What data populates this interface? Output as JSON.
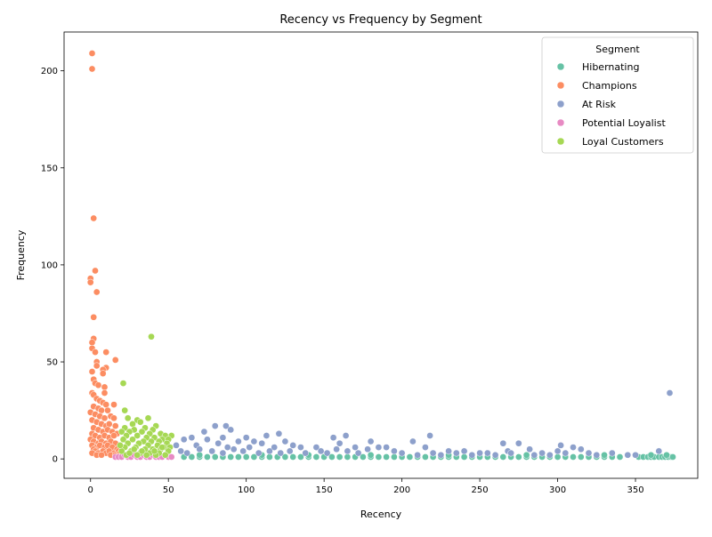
{
  "chart_data": {
    "type": "scatter",
    "title": "Recency vs Frequency by Segment",
    "xlabel": "Recency",
    "ylabel": "Frequency",
    "xlim": [
      -17,
      390
    ],
    "ylim": [
      -10,
      220
    ],
    "xticks": [
      0,
      50,
      100,
      150,
      200,
      250,
      300,
      350
    ],
    "yticks": [
      0,
      50,
      100,
      150,
      200
    ],
    "grid": false,
    "legend": {
      "title": "Segment",
      "placement": "top-right"
    },
    "series": [
      {
        "name": "Hibernating",
        "color": "#66c2a5",
        "points": [
          [
            60,
            1
          ],
          [
            65,
            1
          ],
          [
            70,
            1
          ],
          [
            75,
            1
          ],
          [
            80,
            1
          ],
          [
            85,
            1
          ],
          [
            90,
            1
          ],
          [
            95,
            1
          ],
          [
            100,
            1
          ],
          [
            105,
            1
          ],
          [
            110,
            1
          ],
          [
            115,
            1
          ],
          [
            120,
            1
          ],
          [
            125,
            1
          ],
          [
            130,
            1
          ],
          [
            135,
            1
          ],
          [
            140,
            1
          ],
          [
            145,
            1
          ],
          [
            150,
            1
          ],
          [
            155,
            1
          ],
          [
            160,
            1
          ],
          [
            165,
            1
          ],
          [
            170,
            1
          ],
          [
            175,
            1
          ],
          [
            180,
            1
          ],
          [
            185,
            1
          ],
          [
            190,
            1
          ],
          [
            195,
            1
          ],
          [
            200,
            1
          ],
          [
            205,
            1
          ],
          [
            210,
            1
          ],
          [
            215,
            1
          ],
          [
            220,
            1
          ],
          [
            225,
            1
          ],
          [
            230,
            1
          ],
          [
            235,
            1
          ],
          [
            240,
            1
          ],
          [
            245,
            1
          ],
          [
            250,
            1
          ],
          [
            255,
            1
          ],
          [
            260,
            1
          ],
          [
            265,
            1
          ],
          [
            270,
            1
          ],
          [
            275,
            1
          ],
          [
            280,
            1
          ],
          [
            285,
            1
          ],
          [
            290,
            1
          ],
          [
            295,
            1
          ],
          [
            300,
            1
          ],
          [
            305,
            1
          ],
          [
            310,
            1
          ],
          [
            315,
            1
          ],
          [
            320,
            1
          ],
          [
            325,
            1
          ],
          [
            330,
            1
          ],
          [
            335,
            1
          ],
          [
            340,
            1
          ],
          [
            352,
            1
          ],
          [
            355,
            1
          ],
          [
            358,
            1
          ],
          [
            360,
            1
          ],
          [
            362,
            1
          ],
          [
            365,
            1
          ],
          [
            367,
            1
          ],
          [
            369,
            1
          ],
          [
            371,
            1
          ],
          [
            373,
            1
          ],
          [
            374,
            1
          ],
          [
            70,
            2
          ],
          [
            110,
            2
          ],
          [
            140,
            2
          ],
          [
            180,
            2
          ],
          [
            230,
            2
          ],
          [
            280,
            2
          ],
          [
            330,
            2
          ],
          [
            360,
            2
          ],
          [
            370,
            2
          ]
        ]
      },
      {
        "name": "Champions",
        "color": "#fc8d62",
        "points": [
          [
            1,
            209
          ],
          [
            1,
            201
          ],
          [
            2,
            124
          ],
          [
            3,
            97
          ],
          [
            4,
            86
          ],
          [
            0,
            93
          ],
          [
            0,
            91
          ],
          [
            2,
            73
          ],
          [
            2,
            62
          ],
          [
            1,
            60
          ],
          [
            1,
            57
          ],
          [
            3,
            55
          ],
          [
            4,
            50
          ],
          [
            4,
            48
          ],
          [
            10,
            55
          ],
          [
            10,
            47
          ],
          [
            16,
            51
          ],
          [
            8,
            46
          ],
          [
            8,
            44
          ],
          [
            1,
            45
          ],
          [
            2,
            41
          ],
          [
            3,
            39
          ],
          [
            5,
            38
          ],
          [
            9,
            37
          ],
          [
            9,
            34
          ],
          [
            1,
            34
          ],
          [
            2,
            33
          ],
          [
            4,
            31
          ],
          [
            6,
            30
          ],
          [
            8,
            29
          ],
          [
            10,
            28
          ],
          [
            15,
            28
          ],
          [
            2,
            27
          ],
          [
            5,
            26
          ],
          [
            7,
            25
          ],
          [
            11,
            25
          ],
          [
            0,
            24
          ],
          [
            3,
            23
          ],
          [
            6,
            22
          ],
          [
            9,
            21
          ],
          [
            13,
            22
          ],
          [
            15,
            21
          ],
          [
            1,
            20
          ],
          [
            4,
            19
          ],
          [
            7,
            18
          ],
          [
            10,
            17
          ],
          [
            12,
            18
          ],
          [
            16,
            17
          ],
          [
            2,
            16
          ],
          [
            5,
            15
          ],
          [
            8,
            14
          ],
          [
            11,
            15
          ],
          [
            14,
            14
          ],
          [
            17,
            13
          ],
          [
            1,
            13
          ],
          [
            3,
            12
          ],
          [
            6,
            11
          ],
          [
            9,
            12
          ],
          [
            12,
            11
          ],
          [
            15,
            12
          ],
          [
            0,
            10
          ],
          [
            2,
            9
          ],
          [
            5,
            8
          ],
          [
            7,
            9
          ],
          [
            10,
            8
          ],
          [
            13,
            9
          ],
          [
            16,
            8
          ],
          [
            1,
            7
          ],
          [
            4,
            6
          ],
          [
            6,
            7
          ],
          [
            9,
            6
          ],
          [
            11,
            7
          ],
          [
            14,
            6
          ],
          [
            17,
            5
          ],
          [
            2,
            5
          ],
          [
            3,
            4
          ],
          [
            5,
            3
          ],
          [
            8,
            4
          ],
          [
            10,
            3
          ],
          [
            12,
            4
          ],
          [
            15,
            3
          ],
          [
            18,
            4
          ],
          [
            1,
            3
          ],
          [
            4,
            2
          ],
          [
            7,
            2
          ],
          [
            13,
            2
          ],
          [
            16,
            2
          ],
          [
            19,
            3
          ]
        ]
      },
      {
        "name": "At Risk",
        "color": "#8da0cb",
        "points": [
          [
            372,
            34
          ],
          [
            80,
            17
          ],
          [
            87,
            17
          ],
          [
            90,
            15
          ],
          [
            73,
            14
          ],
          [
            121,
            13
          ],
          [
            113,
            12
          ],
          [
            164,
            12
          ],
          [
            218,
            12
          ],
          [
            85,
            11
          ],
          [
            100,
            11
          ],
          [
            156,
            11
          ],
          [
            65,
            11
          ],
          [
            60,
            10
          ],
          [
            75,
            10
          ],
          [
            95,
            9
          ],
          [
            105,
            9
          ],
          [
            125,
            9
          ],
          [
            180,
            9
          ],
          [
            207,
            9
          ],
          [
            82,
            8
          ],
          [
            110,
            8
          ],
          [
            130,
            7
          ],
          [
            160,
            8
          ],
          [
            190,
            6
          ],
          [
            265,
            8
          ],
          [
            275,
            8
          ],
          [
            302,
            7
          ],
          [
            55,
            7
          ],
          [
            68,
            7
          ],
          [
            88,
            6
          ],
          [
            102,
            6
          ],
          [
            118,
            6
          ],
          [
            135,
            6
          ],
          [
            145,
            6
          ],
          [
            170,
            6
          ],
          [
            185,
            6
          ],
          [
            215,
            6
          ],
          [
            230,
            4
          ],
          [
            240,
            4
          ],
          [
            255,
            3
          ],
          [
            268,
            4
          ],
          [
            282,
            5
          ],
          [
            290,
            3
          ],
          [
            300,
            4
          ],
          [
            310,
            6
          ],
          [
            315,
            5
          ],
          [
            320,
            3
          ],
          [
            335,
            3
          ],
          [
            365,
            4
          ],
          [
            58,
            4
          ],
          [
            62,
            3
          ],
          [
            70,
            5
          ],
          [
            78,
            4
          ],
          [
            85,
            3
          ],
          [
            92,
            5
          ],
          [
            98,
            4
          ],
          [
            108,
            3
          ],
          [
            115,
            4
          ],
          [
            122,
            3
          ],
          [
            128,
            4
          ],
          [
            138,
            3
          ],
          [
            148,
            4
          ],
          [
            152,
            3
          ],
          [
            158,
            5
          ],
          [
            165,
            4
          ],
          [
            172,
            3
          ],
          [
            178,
            5
          ],
          [
            195,
            4
          ],
          [
            200,
            3
          ],
          [
            210,
            2
          ],
          [
            220,
            3
          ],
          [
            225,
            2
          ],
          [
            235,
            3
          ],
          [
            245,
            2
          ],
          [
            250,
            3
          ],
          [
            260,
            2
          ],
          [
            270,
            3
          ],
          [
            285,
            2
          ],
          [
            295,
            2
          ],
          [
            305,
            3
          ],
          [
            325,
            2
          ],
          [
            345,
            2
          ],
          [
            350,
            2
          ]
        ]
      },
      {
        "name": "Potential Loyalist",
        "color": "#e78ac3",
        "points": [
          [
            16,
            1
          ],
          [
            18,
            1
          ],
          [
            20,
            1
          ],
          [
            22,
            2
          ],
          [
            24,
            1
          ],
          [
            26,
            1
          ],
          [
            28,
            2
          ],
          [
            30,
            1
          ],
          [
            32,
            1
          ],
          [
            34,
            2
          ],
          [
            36,
            1
          ],
          [
            38,
            1
          ],
          [
            40,
            2
          ],
          [
            42,
            1
          ],
          [
            44,
            1
          ],
          [
            46,
            1
          ],
          [
            48,
            2
          ],
          [
            50,
            1
          ],
          [
            52,
            1
          ]
        ]
      },
      {
        "name": "Loyal Customers",
        "color": "#a6d854",
        "points": [
          [
            39,
            63
          ],
          [
            21,
            39
          ],
          [
            22,
            25
          ],
          [
            24,
            21
          ],
          [
            37,
            21
          ],
          [
            30,
            20
          ],
          [
            32,
            19
          ],
          [
            27,
            18
          ],
          [
            42,
            17
          ],
          [
            35,
            16
          ],
          [
            22,
            16
          ],
          [
            28,
            15
          ],
          [
            40,
            15
          ],
          [
            20,
            14
          ],
          [
            25,
            14
          ],
          [
            33,
            14
          ],
          [
            38,
            13
          ],
          [
            45,
            13
          ],
          [
            48,
            12
          ],
          [
            52,
            12
          ],
          [
            23,
            12
          ],
          [
            30,
            12
          ],
          [
            36,
            11
          ],
          [
            41,
            11
          ],
          [
            46,
            10
          ],
          [
            50,
            10
          ],
          [
            21,
            10
          ],
          [
            27,
            10
          ],
          [
            34,
            9
          ],
          [
            39,
            9
          ],
          [
            44,
            9
          ],
          [
            49,
            8
          ],
          [
            24,
            8
          ],
          [
            31,
            8
          ],
          [
            37,
            7
          ],
          [
            43,
            7
          ],
          [
            47,
            6
          ],
          [
            51,
            6
          ],
          [
            22,
            6
          ],
          [
            29,
            6
          ],
          [
            35,
            5
          ],
          [
            40,
            5
          ],
          [
            45,
            5
          ],
          [
            50,
            4
          ],
          [
            20,
            4
          ],
          [
            26,
            4
          ],
          [
            32,
            3
          ],
          [
            38,
            3
          ],
          [
            44,
            3
          ],
          [
            48,
            2
          ],
          [
            23,
            2
          ],
          [
            30,
            2
          ],
          [
            36,
            2
          ],
          [
            42,
            2
          ],
          [
            25,
            3
          ],
          [
            33,
            4
          ],
          [
            41,
            4
          ],
          [
            28,
            5
          ],
          [
            46,
            6
          ],
          [
            19,
            7
          ]
        ]
      }
    ]
  }
}
